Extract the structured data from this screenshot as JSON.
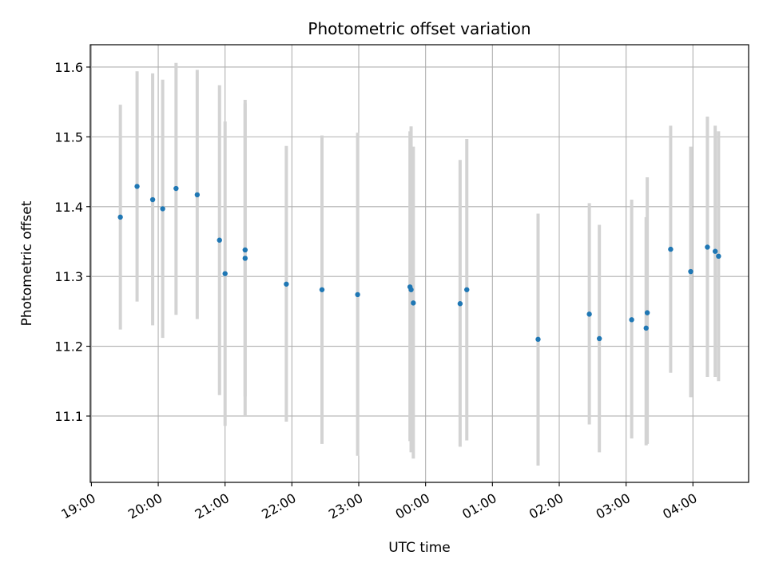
{
  "chart_data": {
    "type": "scatter",
    "title": "Photometric offset variation",
    "xlabel": "UTC time",
    "ylabel": "Photometric offset",
    "grid": true,
    "x_axis_type": "time",
    "xlim": [
      "18:59",
      "04:50"
    ],
    "ylim": [
      11.005,
      11.632
    ],
    "x_ticks": [
      "19:00",
      "20:00",
      "21:00",
      "22:00",
      "23:00",
      "00:00",
      "01:00",
      "02:00",
      "03:00",
      "04:00"
    ],
    "y_ticks": [
      "11.1",
      "11.2",
      "11.3",
      "11.4",
      "11.5",
      "11.6"
    ],
    "colors": {
      "point": "#1f77b4",
      "errorbar": "#d3d3d3",
      "grid": "#b0b0b0"
    },
    "points": [
      {
        "x": "19:26",
        "y": 11.385,
        "ylow": 11.224,
        "yhigh": 11.546
      },
      {
        "x": "19:41",
        "y": 11.429,
        "ylow": 11.264,
        "yhigh": 11.594
      },
      {
        "x": "19:55",
        "y": 11.41,
        "ylow": 11.23,
        "yhigh": 11.591
      },
      {
        "x": "20:04",
        "y": 11.397,
        "ylow": 11.212,
        "yhigh": 11.582
      },
      {
        "x": "20:16",
        "y": 11.426,
        "ylow": 11.245,
        "yhigh": 11.606
      },
      {
        "x": "20:35",
        "y": 11.417,
        "ylow": 11.239,
        "yhigh": 11.596
      },
      {
        "x": "20:55",
        "y": 11.352,
        "ylow": 11.13,
        "yhigh": 11.574
      },
      {
        "x": "21:00",
        "y": 11.304,
        "ylow": 11.086,
        "yhigh": 11.522
      },
      {
        "x": "21:18",
        "y": 11.326,
        "ylow": 11.1,
        "yhigh": 11.553
      },
      {
        "x": "21:18",
        "y": 11.338,
        "ylow": 11.128,
        "yhigh": 11.548
      },
      {
        "x": "21:55",
        "y": 11.289,
        "ylow": 11.092,
        "yhigh": 11.487
      },
      {
        "x": "22:27",
        "y": 11.281,
        "ylow": 11.06,
        "yhigh": 11.502
      },
      {
        "x": "22:59",
        "y": 11.274,
        "ylow": 11.043,
        "yhigh": 11.506
      },
      {
        "x": "23:46",
        "y": 11.285,
        "ylow": 11.064,
        "yhigh": 11.508
      },
      {
        "x": "23:47",
        "y": 11.281,
        "ylow": 11.048,
        "yhigh": 11.515
      },
      {
        "x": "23:49",
        "y": 11.262,
        "ylow": 11.039,
        "yhigh": 11.486
      },
      {
        "x": "00:31",
        "y": 11.261,
        "ylow": 11.056,
        "yhigh": 11.467
      },
      {
        "x": "00:37",
        "y": 11.281,
        "ylow": 11.065,
        "yhigh": 11.497
      },
      {
        "x": "01:41",
        "y": 11.21,
        "ylow": 11.029,
        "yhigh": 11.39
      },
      {
        "x": "02:27",
        "y": 11.246,
        "ylow": 11.088,
        "yhigh": 11.405
      },
      {
        "x": "02:36",
        "y": 11.211,
        "ylow": 11.048,
        "yhigh": 11.374
      },
      {
        "x": "03:05",
        "y": 11.238,
        "ylow": 11.068,
        "yhigh": 11.41
      },
      {
        "x": "03:18",
        "y": 11.226,
        "ylow": 11.058,
        "yhigh": 11.385
      },
      {
        "x": "03:19",
        "y": 11.248,
        "ylow": 11.06,
        "yhigh": 11.442
      },
      {
        "x": "03:40",
        "y": 11.339,
        "ylow": 11.162,
        "yhigh": 11.516
      },
      {
        "x": "03:58",
        "y": 11.307,
        "ylow": 11.127,
        "yhigh": 11.486
      },
      {
        "x": "04:13",
        "y": 11.342,
        "ylow": 11.156,
        "yhigh": 11.529
      },
      {
        "x": "04:20",
        "y": 11.336,
        "ylow": 11.156,
        "yhigh": 11.516
      },
      {
        "x": "04:23",
        "y": 11.329,
        "ylow": 11.15,
        "yhigh": 11.508
      }
    ]
  }
}
